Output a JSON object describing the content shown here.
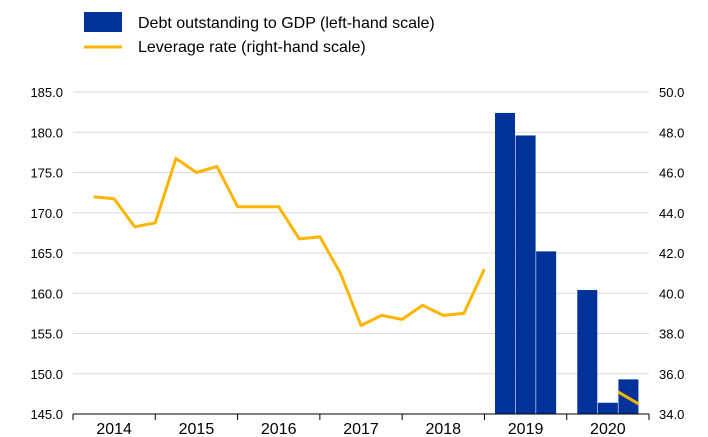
{
  "colors": {
    "bar": "#003299",
    "line": "#FFB400",
    "grid": "#D9D9D9",
    "axis": "#000000"
  },
  "legend": {
    "bar_label": "Debt outstanding to GDP (left-hand scale)",
    "line_label": "Leverage rate (right-hand scale)"
  },
  "chart_data": {
    "type": "bar",
    "series": [
      {
        "name": "Debt outstanding to GDP (left-hand scale)",
        "kind": "bar",
        "axis": "left",
        "x": [
          2018.75,
          2019.0,
          2019.25,
          2019.75,
          2020.0,
          2020.25
        ],
        "values": [
          182.4,
          179.6,
          165.2,
          160.4,
          146.4,
          149.3
        ]
      },
      {
        "name": "Leverage rate (right-hand scale)",
        "kind": "line",
        "axis": "right",
        "segments": [
          {
            "x": [
              2013.75,
              2014.0,
              2014.25,
              2014.5,
              2014.75,
              2015.0,
              2015.25,
              2015.5,
              2015.75,
              2016.0,
              2016.25,
              2016.5,
              2016.75,
              2017.0,
              2017.25,
              2017.5,
              2017.75,
              2018.0,
              2018.25,
              2018.5
            ],
            "values": [
              44.8,
              44.7,
              43.3,
              43.5,
              46.7,
              46.0,
              46.3,
              44.3,
              44.3,
              44.3,
              42.7,
              42.8,
              41.0,
              38.4,
              38.9,
              38.7,
              39.4,
              38.9,
              39.0,
              41.2
            ]
          },
          {
            "x": [
              2020.125,
              2020.375
            ],
            "values": [
              35.1,
              34.5
            ]
          }
        ]
      }
    ],
    "x_categories": [
      "2014",
      "2015",
      "2016",
      "2017",
      "2018",
      "2019",
      "2020"
    ],
    "y_left": {
      "min": 145,
      "max": 185,
      "step": 5,
      "ticks": [
        "145.0",
        "150.0",
        "155.0",
        "160.0",
        "165.0",
        "170.0",
        "175.0",
        "180.0",
        "185.0"
      ]
    },
    "y_right": {
      "min": 34,
      "max": 50,
      "step": 2,
      "ticks": [
        "34.0",
        "36.0",
        "38.0",
        "40.0",
        "42.0",
        "44.0",
        "46.0",
        "48.0",
        "50.0"
      ]
    },
    "grid": true,
    "legend_position": "top-left"
  }
}
